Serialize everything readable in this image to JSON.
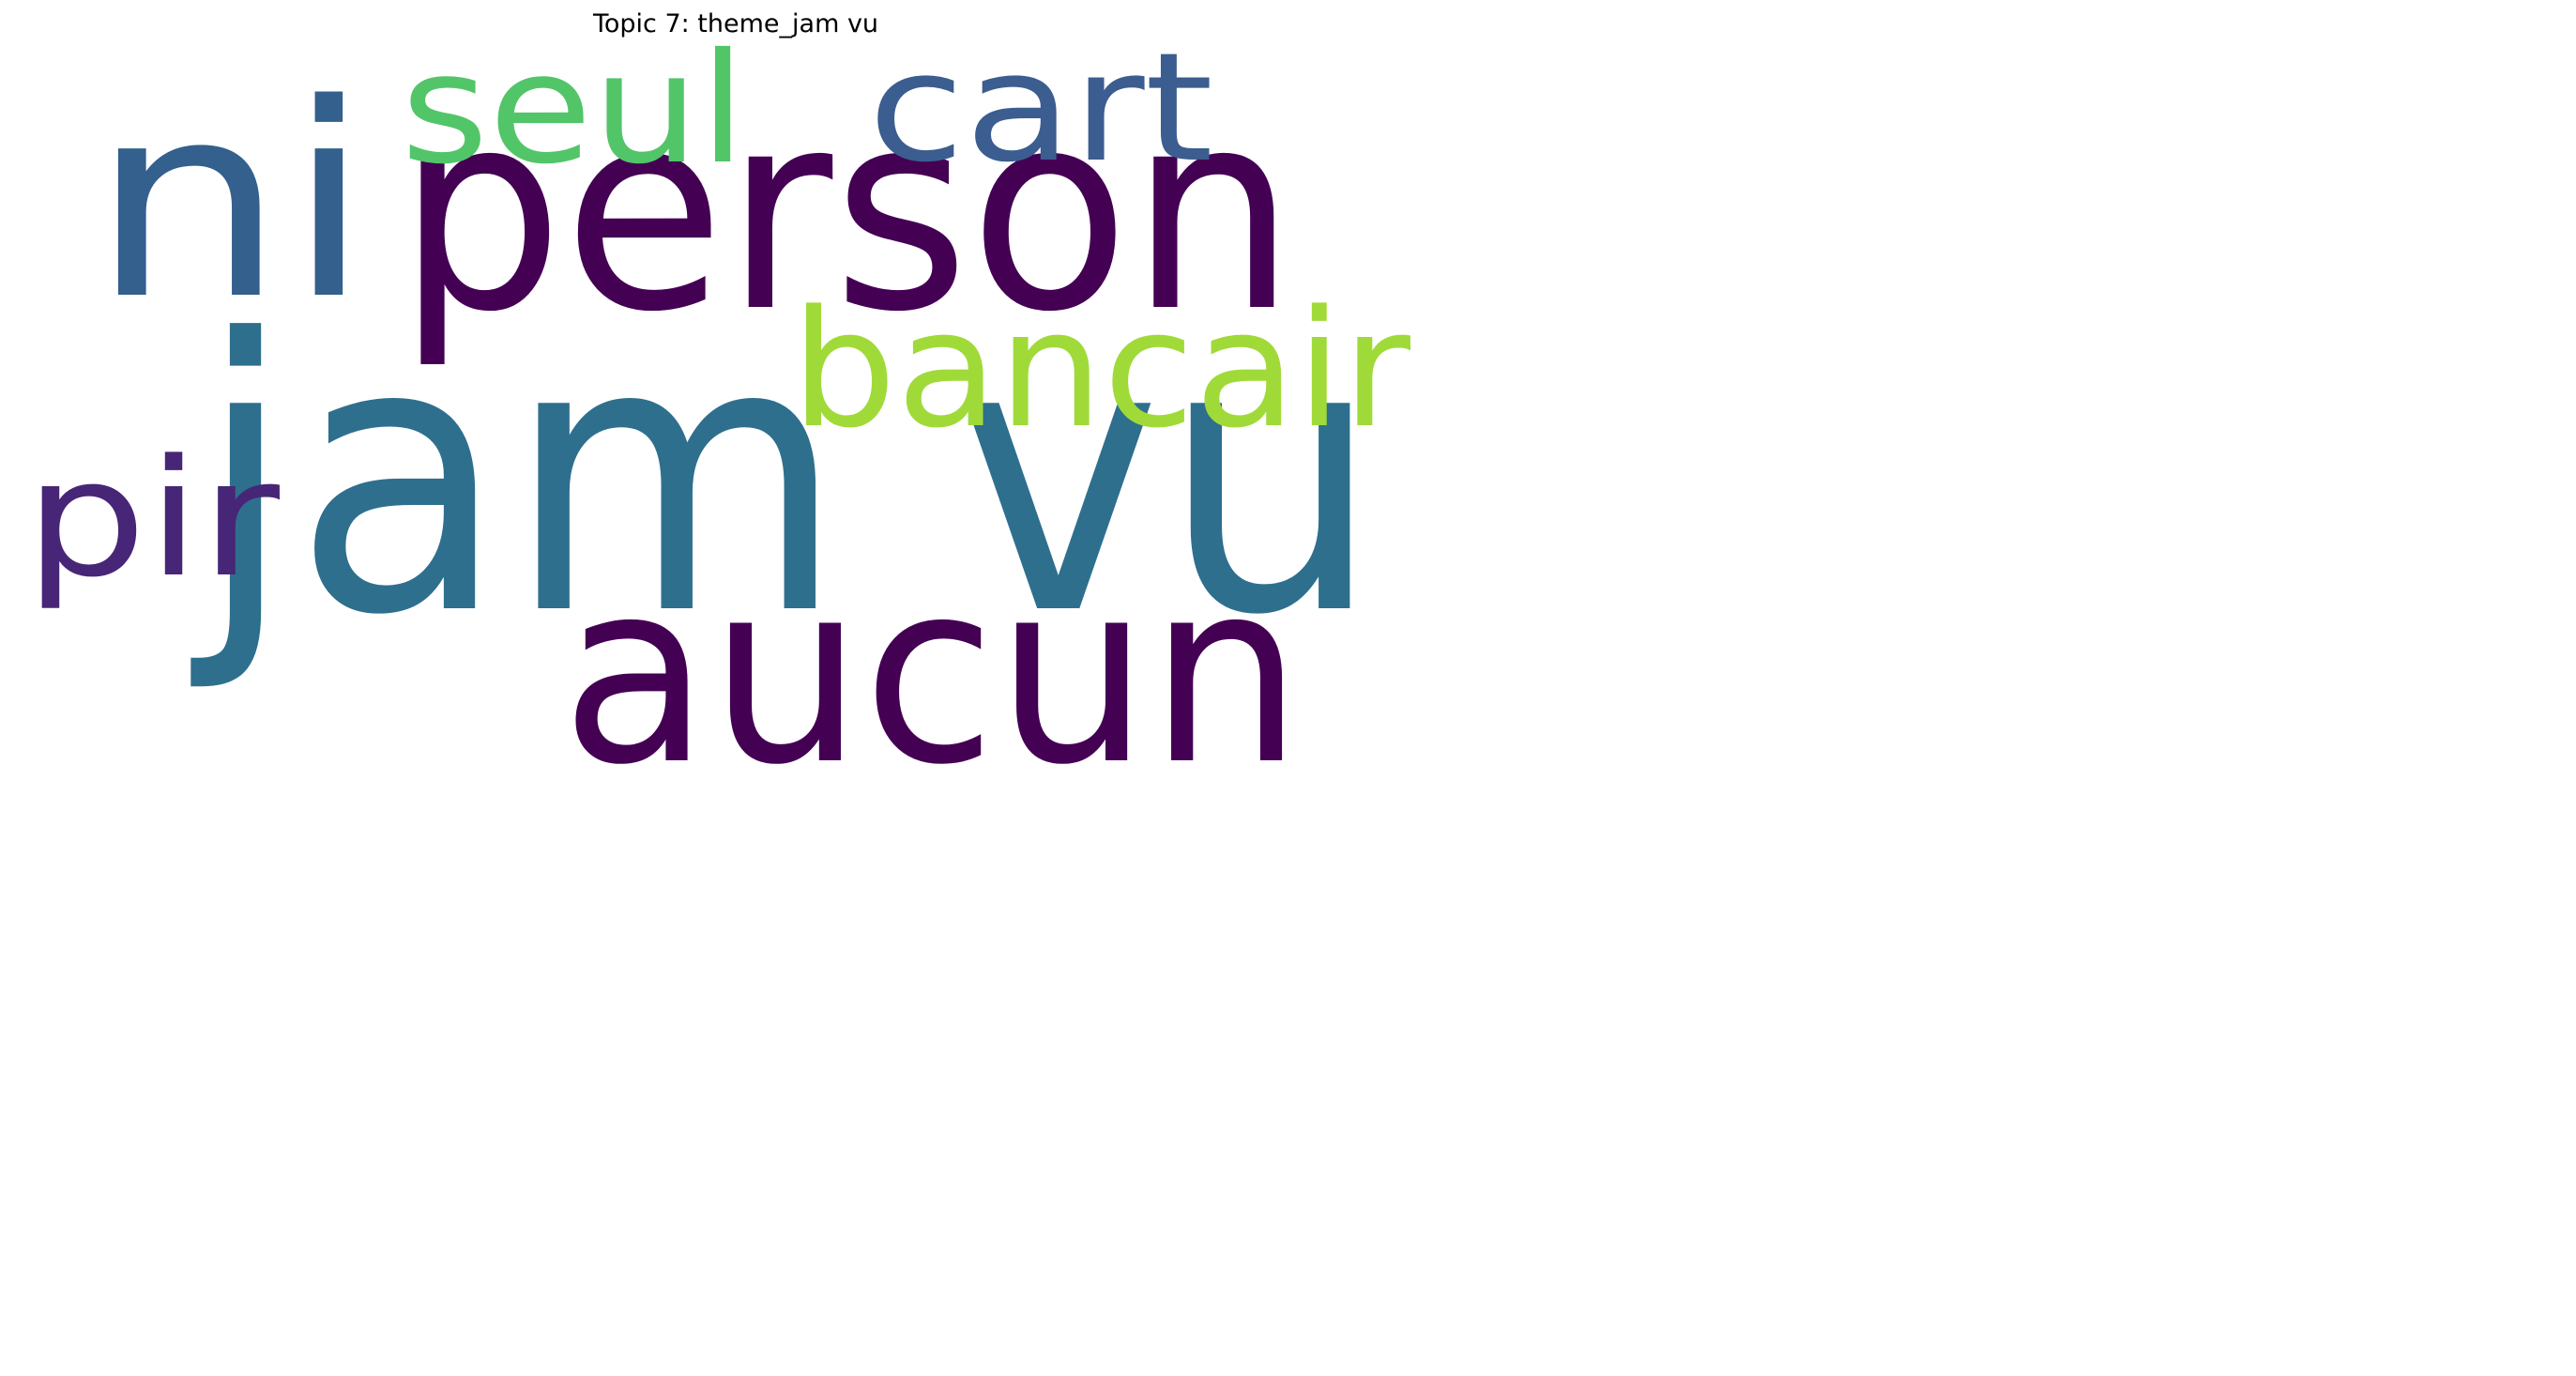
{
  "title": "Topic 7: theme_jam vu",
  "words": [
    {
      "text": "jam vu",
      "color": "#2e6f8e"
    },
    {
      "text": "person",
      "color": "#440154"
    },
    {
      "text": "aucun",
      "color": "#440154"
    },
    {
      "text": "ni",
      "color": "#33608d"
    },
    {
      "text": "bancair",
      "color": "#a0da39"
    },
    {
      "text": "seul",
      "color": "#52c569"
    },
    {
      "text": "cart",
      "color": "#3b5d8f"
    },
    {
      "text": "pir",
      "color": "#472677"
    }
  ]
}
